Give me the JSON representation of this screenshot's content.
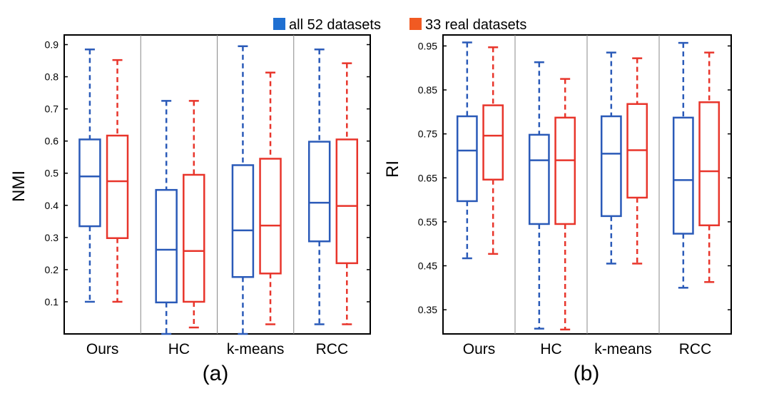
{
  "legend": {
    "items": [
      {
        "label": "all 52 datasets",
        "color": "#2a5ab8"
      },
      {
        "label": "33 real datasets",
        "color": "#e8352b"
      }
    ],
    "swatch_colors": [
      "#1f6fd1",
      "#f15a22"
    ]
  },
  "chart_data": [
    {
      "type": "boxplot",
      "panel_label": "(a)",
      "xlabel": "",
      "ylabel": "NMI",
      "ylim": [
        0,
        0.93
      ],
      "yticks": [
        "0.1",
        "0.2",
        "0.3",
        "0.4",
        "0.5",
        "0.6",
        "0.7",
        "0.8",
        "0.9"
      ],
      "categories": [
        "Ours",
        "HC",
        "k-means",
        "RCC"
      ],
      "series": [
        {
          "name": "all 52 datasets",
          "color": "#2a5ab8",
          "boxes": [
            {
              "min": 0.1,
              "q1": 0.335,
              "median": 0.49,
              "q3": 0.605,
              "max": 0.885
            },
            {
              "min": 0.0,
              "q1": 0.098,
              "median": 0.262,
              "q3": 0.448,
              "max": 0.725
            },
            {
              "min": 0.0,
              "q1": 0.177,
              "median": 0.322,
              "q3": 0.525,
              "max": 0.895
            },
            {
              "min": 0.03,
              "q1": 0.288,
              "median": 0.408,
              "q3": 0.598,
              "max": 0.885
            }
          ]
        },
        {
          "name": "33 real datasets",
          "color": "#e8352b",
          "boxes": [
            {
              "min": 0.1,
              "q1": 0.298,
              "median": 0.475,
              "q3": 0.617,
              "max": 0.852
            },
            {
              "min": 0.02,
              "q1": 0.1,
              "median": 0.258,
              "q3": 0.495,
              "max": 0.725
            },
            {
              "min": 0.03,
              "q1": 0.188,
              "median": 0.337,
              "q3": 0.545,
              "max": 0.813
            },
            {
              "min": 0.03,
              "q1": 0.22,
              "median": 0.398,
              "q3": 0.605,
              "max": 0.842
            }
          ]
        }
      ]
    },
    {
      "type": "boxplot",
      "panel_label": "(b)",
      "xlabel": "",
      "ylabel": "RI",
      "ylim": [
        0.295,
        0.975
      ],
      "yticks": [
        "0.35",
        "0.45",
        "0.55",
        "0.65",
        "0.75",
        "0.85",
        "0.95"
      ],
      "categories": [
        "Ours",
        "HC",
        "k-means",
        "RCC"
      ],
      "series": [
        {
          "name": "all 52 datasets",
          "color": "#2a5ab8",
          "boxes": [
            {
              "min": 0.467,
              "q1": 0.597,
              "median": 0.712,
              "q3": 0.79,
              "max": 0.958
            },
            {
              "min": 0.307,
              "q1": 0.545,
              "median": 0.69,
              "q3": 0.748,
              "max": 0.913
            },
            {
              "min": 0.455,
              "q1": 0.563,
              "median": 0.705,
              "q3": 0.79,
              "max": 0.935
            },
            {
              "min": 0.4,
              "q1": 0.523,
              "median": 0.645,
              "q3": 0.787,
              "max": 0.957
            }
          ]
        },
        {
          "name": "33 real datasets",
          "color": "#e8352b",
          "boxes": [
            {
              "min": 0.477,
              "q1": 0.646,
              "median": 0.746,
              "q3": 0.815,
              "max": 0.947
            },
            {
              "min": 0.305,
              "q1": 0.545,
              "median": 0.69,
              "q3": 0.787,
              "max": 0.875
            },
            {
              "min": 0.455,
              "q1": 0.605,
              "median": 0.713,
              "q3": 0.818,
              "max": 0.922
            },
            {
              "min": 0.413,
              "q1": 0.542,
              "median": 0.665,
              "q3": 0.822,
              "max": 0.935
            }
          ]
        }
      ]
    }
  ]
}
